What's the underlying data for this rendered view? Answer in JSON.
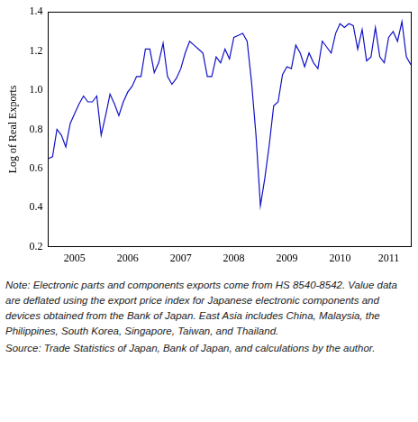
{
  "chart_data": {
    "type": "line",
    "y_label": "Log of Real Exports",
    "color": "#1010c8",
    "grid": false,
    "ylim": [
      0.2,
      1.4
    ],
    "yticks": [
      0.2,
      0.4,
      0.6,
      0.8,
      {
        "value": 1,
        "label": "1.0"
      },
      1.2,
      1.4
    ],
    "categories": [
      null,
      null,
      null,
      null,
      null,
      null,
      "2005",
      null,
      null,
      null,
      null,
      null,
      null,
      null,
      null,
      null,
      null,
      null,
      "2006",
      null,
      null,
      null,
      null,
      null,
      null,
      null,
      null,
      null,
      null,
      null,
      "2007",
      null,
      null,
      null,
      null,
      null,
      null,
      null,
      null,
      null,
      null,
      null,
      "2008",
      null,
      null,
      null,
      null,
      null,
      null,
      null,
      null,
      null,
      null,
      null,
      "2009",
      null,
      null,
      null,
      null,
      null,
      null,
      null,
      null,
      null,
      null,
      null,
      "2010",
      null,
      null,
      null,
      null,
      null,
      null,
      null,
      null,
      null,
      null,
      "2011",
      null,
      null,
      null,
      null,
      null
    ],
    "values": [
      0.65,
      0.66,
      0.8,
      0.77,
      0.71,
      0.83,
      0.88,
      0.93,
      0.97,
      0.94,
      0.94,
      0.97,
      0.77,
      0.87,
      0.98,
      0.93,
      0.87,
      0.94,
      0.99,
      1.02,
      1.07,
      1.07,
      1.21,
      1.21,
      1.09,
      1.14,
      1.24,
      1.07,
      1.03,
      1.06,
      1.11,
      1.19,
      1.25,
      1.23,
      1.21,
      1.19,
      1.07,
      1.07,
      1.17,
      1.14,
      1.21,
      1.16,
      1.27,
      1.28,
      1.29,
      1.25,
      1.04,
      0.77,
      0.41,
      0.55,
      0.72,
      0.92,
      0.94,
      1.08,
      1.12,
      1.11,
      1.23,
      1.19,
      1.12,
      1.19,
      1.14,
      1.11,
      1.25,
      1.22,
      1.19,
      1.29,
      1.34,
      1.32,
      1.34,
      1.33,
      1.21,
      1.31,
      1.15,
      1.17,
      1.32,
      1.17,
      1.14,
      1.27,
      1.3,
      1.25,
      1.35,
      1.17,
      1.13
    ],
    "annotations": [
      "Note: Electronic parts and components exports come from HS 8540-8542.  Value data are deflated using the export price index for Japanese electronic components and devices obtained from the Bank of Japan.  East Asia includes China, Malaysia, the Philippines, South Korea, Singapore, Taiwan, and Thailand.",
      "Source: Trade Statistics of Japan, Bank of Japan, and calculations by the author."
    ]
  }
}
